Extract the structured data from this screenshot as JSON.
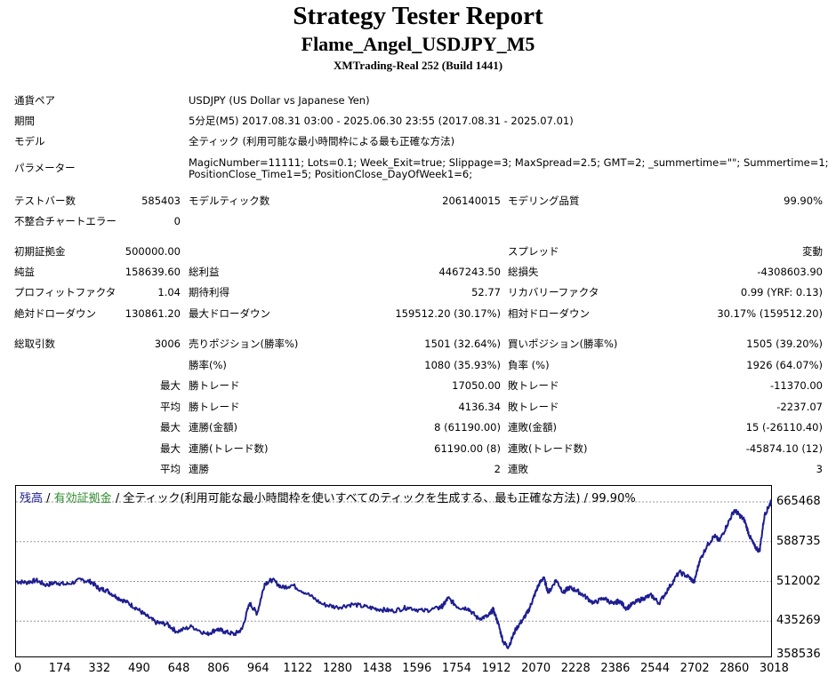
{
  "header": {
    "title": "Strategy Tester Report",
    "ea_name": "Flame_Angel_USDJPY_M5",
    "server": "XMTrading-Real 252 (Build 1441)"
  },
  "info": {
    "pair_label": "通貨ペア",
    "pair_value": "USDJPY (US Dollar vs Japanese Yen)",
    "period_label": "期間",
    "period_value": "5分足(M5) 2017.08.31 03:00 - 2025.06.30 23:55 (2017.08.31 - 2025.07.01)",
    "model_label": "モデル",
    "model_value": "全ティック (利用可能な最小時間枠による最も正確な方法)",
    "params_label": "パラメーター",
    "params_line1": "MagicNumber=11111; Lots=0.1; Week_Exit=true; Slippage=3; MaxSpread=2.5; GMT=2; _summertime=\"\"; Summertime=1;",
    "params_line2": "PositionClose_Time1=5; PositionClose_DayOfWeek1=6;"
  },
  "stats": {
    "bars_label": "テストバー数",
    "bars_value": "585403",
    "ticks_label": "モデルティック数",
    "ticks_value": "206140015",
    "quality_label": "モデリング品質",
    "quality_value": "99.90%",
    "mismatch_label": "不整合チャートエラー",
    "mismatch_value": "0",
    "deposit_label": "初期証拠金",
    "deposit_value": "500000.00",
    "spread_label": "スプレッド",
    "spread_value": "変動",
    "net_label": "純益",
    "net_value": "158639.60",
    "gross_profit_label": "総利益",
    "gross_profit_value": "4467243.50",
    "gross_loss_label": "総損失",
    "gross_loss_value": "-4308603.90",
    "pf_label": "プロフィットファクタ",
    "pf_value": "1.04",
    "payoff_label": "期待利得",
    "payoff_value": "52.77",
    "recovery_label": "リカバリーファクタ",
    "recovery_value": "0.99 (YRF: 0.13)",
    "abs_dd_label": "絶対ドローダウン",
    "abs_dd_value": "130861.20",
    "max_dd_label": "最大ドローダウン",
    "max_dd_value": "159512.20 (30.17%)",
    "rel_dd_label": "相対ドローダウン",
    "rel_dd_value": "30.17% (159512.20)",
    "trades_label": "総取引数",
    "trades_value": "3006",
    "short_label": "売りポジション(勝率%)",
    "short_value": "1501 (32.64%)",
    "long_label": "買いポジション(勝率%)",
    "long_value": "1505 (39.20%)",
    "winrate_label": "勝率(%)",
    "winrate_value": "1080 (35.93%)",
    "lossrate_label": "負率 (%)",
    "lossrate_value": "1926 (64.07%)",
    "max1_label": "最大",
    "max_win_label": "勝トレード",
    "max_win_value": "17050.00",
    "max_loss_label": "敗トレード",
    "max_loss_value": "-11370.00",
    "avg1_label": "平均",
    "avg_win_label": "勝トレード",
    "avg_win_value": "4136.34",
    "avg_loss_label": "敗トレード",
    "avg_loss_value": "-2237.07",
    "max2_label": "最大",
    "cons_win_amt_label": "連勝(金額)",
    "cons_win_amt_value": "8 (61190.00)",
    "cons_loss_amt_label": "連敗(金額)",
    "cons_loss_amt_value": "15 (-26110.40)",
    "max3_label": "最大",
    "cons_win_cnt_label": "連勝(トレード数)",
    "cons_win_cnt_value": "61190.00 (8)",
    "cons_loss_cnt_label": "連敗(トレード数)",
    "cons_loss_cnt_value": "-45874.10 (12)",
    "avg2_label": "平均",
    "avg_cons_win_label": "連勝",
    "avg_cons_win_value": "2",
    "avg_cons_loss_label": "連敗",
    "avg_cons_loss_value": "3"
  },
  "chart_legend": {
    "balance": "残高",
    "sep1": " / ",
    "equity": "有効証拠金",
    "rest": " / 全ティック(利用可能な最小時間枠を使いすべてのティックを生成する、最も正確な方法) / 99.90%"
  },
  "colors": {
    "balance_line": "#1e1e90",
    "equity_legend": "#2e8b2e",
    "grid": "#9a9a9a"
  },
  "chart_data": {
    "type": "line",
    "xlabel": "",
    "ylabel": "",
    "x_ticks": [
      0,
      174,
      332,
      490,
      648,
      806,
      964,
      1122,
      1280,
      1438,
      1596,
      1754,
      1912,
      2070,
      2228,
      2386,
      2544,
      2702,
      2860,
      3018
    ],
    "y_ticks": [
      358536,
      435269,
      512002,
      588735,
      665468
    ],
    "xlim": [
      0,
      3006
    ],
    "ylim": [
      358536,
      680000
    ],
    "grid": true,
    "series": [
      {
        "x": [
          0,
          40,
          80,
          120,
          160,
          200,
          260,
          300,
          330,
          360,
          400,
          440,
          480,
          520,
          560,
          600,
          640,
          700,
          760,
          800,
          830,
          870,
          900,
          930,
          960,
          990,
          1020,
          1060,
          1100,
          1160,
          1220,
          1280,
          1340,
          1400,
          1450,
          1500,
          1560,
          1620,
          1680,
          1700,
          1720,
          1760,
          1800,
          1840,
          1880,
          1900,
          1920,
          1940,
          1960,
          1990,
          2020,
          2040,
          2060,
          2080,
          2100,
          2120,
          2150,
          2180,
          2200,
          2230,
          2260,
          2300,
          2340,
          2380,
          2400,
          2430,
          2460,
          2500,
          2530,
          2560,
          2600,
          2640,
          2680,
          2700,
          2720,
          2750,
          2780,
          2800,
          2830,
          2860,
          2880,
          2900,
          2920,
          2940,
          2960,
          2980,
          3000,
          3006
        ],
        "values": [
          512000,
          510000,
          514000,
          505000,
          510000,
          506000,
          515000,
          511000,
          498000,
          495000,
          482000,
          472000,
          460000,
          445000,
          432000,
          430000,
          415000,
          425000,
          410000,
          420000,
          415000,
          410000,
          420000,
          470000,
          450000,
          508000,
          515000,
          500000,
          505000,
          488000,
          468000,
          462000,
          468000,
          462000,
          458000,
          455000,
          462000,
          455000,
          460000,
          465000,
          480000,
          462000,
          460000,
          440000,
          445000,
          458000,
          430000,
          395000,
          385000,
          420000,
          440000,
          455000,
          480000,
          505000,
          520000,
          490000,
          515000,
          490000,
          500000,
          495000,
          485000,
          470000,
          480000,
          468000,
          475000,
          460000,
          470000,
          480000,
          485000,
          470000,
          500000,
          530000,
          520000,
          510000,
          550000,
          580000,
          600000,
          590000,
          620000,
          650000,
          640000,
          630000,
          600000,
          580000,
          570000,
          640000,
          660000,
          665000
        ]
      }
    ]
  }
}
